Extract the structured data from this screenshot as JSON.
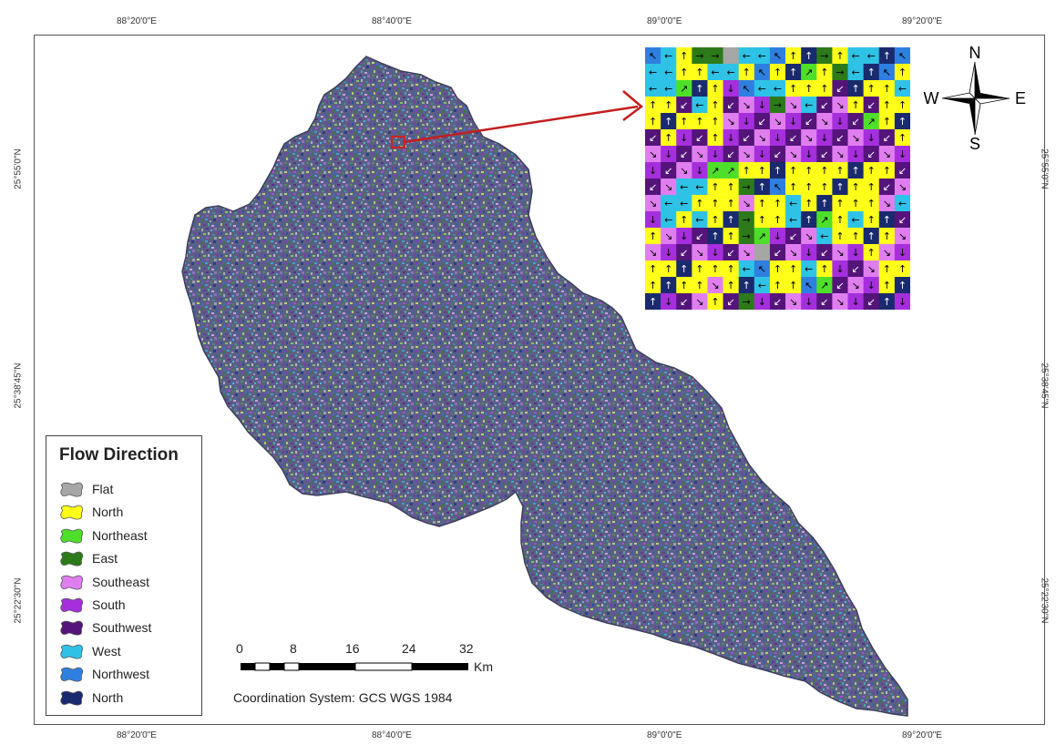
{
  "map": {
    "top_ticks": [
      "88°20'0\"E",
      "88°40'0\"E",
      "89°0'0\"E",
      "89°20'0\"E"
    ],
    "bottom_ticks": [
      "88°20'0\"E",
      "88°40'0\"E",
      "89°0'0\"E",
      "89°20'0\"E"
    ],
    "left_ticks": [
      "25°55'0\"N",
      "25°38'45\"N",
      "25°22'30\"N"
    ],
    "right_ticks": [
      "25°55'0\"N",
      "25°38'45\"N",
      "25°22'30\"N"
    ]
  },
  "legend": {
    "title": "Flow Direction",
    "items": [
      {
        "label": "Flat",
        "color": "#a6a6a6"
      },
      {
        "label": "North",
        "color": "#ffff1a"
      },
      {
        "label": "Northeast",
        "color": "#4fdf2b"
      },
      {
        "label": "East",
        "color": "#2c7a1a"
      },
      {
        "label": "Southeast",
        "color": "#e07ef0"
      },
      {
        "label": "South",
        "color": "#a52fdc"
      },
      {
        "label": "Southwest",
        "color": "#54147a"
      },
      {
        "label": "West",
        "color": "#2ec3e6"
      },
      {
        "label": "Northwest",
        "color": "#2f7fe0"
      },
      {
        "label": "North",
        "color": "#1a2a6e"
      }
    ]
  },
  "scalebar": {
    "labels": [
      "0",
      "8",
      "16",
      "24",
      "32"
    ],
    "unit": "Km"
  },
  "coordinate_system": "Coordination System: GCS WGS 1984",
  "compass": {
    "n": "N",
    "s": "S",
    "e": "E",
    "w": "W"
  },
  "inset_arrows": {
    "N": "↑",
    "NE": "↗",
    "E": "→",
    "SE": "↘",
    "S": "↓",
    "SW": "↙",
    "W": "←",
    "NW": "↖",
    "F": ""
  },
  "inset_grid": [
    "WWNEEFWWWNNENWWNW",
    "WWNNWWNWNNENEWNWNW",
    "WWENNSWWWNNNSNNN",
    "NNSWNSSSESWSSNS",
    "NNNNNSSSSSSSSSE",
    "SNSSNSSSSSSSSSS",
    "SSSSSSSSSSSSSSSS",
    "SSSSEENNNNNNNNNN",
    "SSWWNNENWNNNNNN",
    "SWWNNNSNNWNNNNN",
    "SWNWNNENNWNENWNN",
    "NSSSNNEESSSWNNN",
    "SSSSSSSFSSSSSSN",
    "NNNNNNWWNNWNSSS",
    "NNNNSNNWNNWESSS",
    "NSSSNSESSSSSSSS"
  ]
}
